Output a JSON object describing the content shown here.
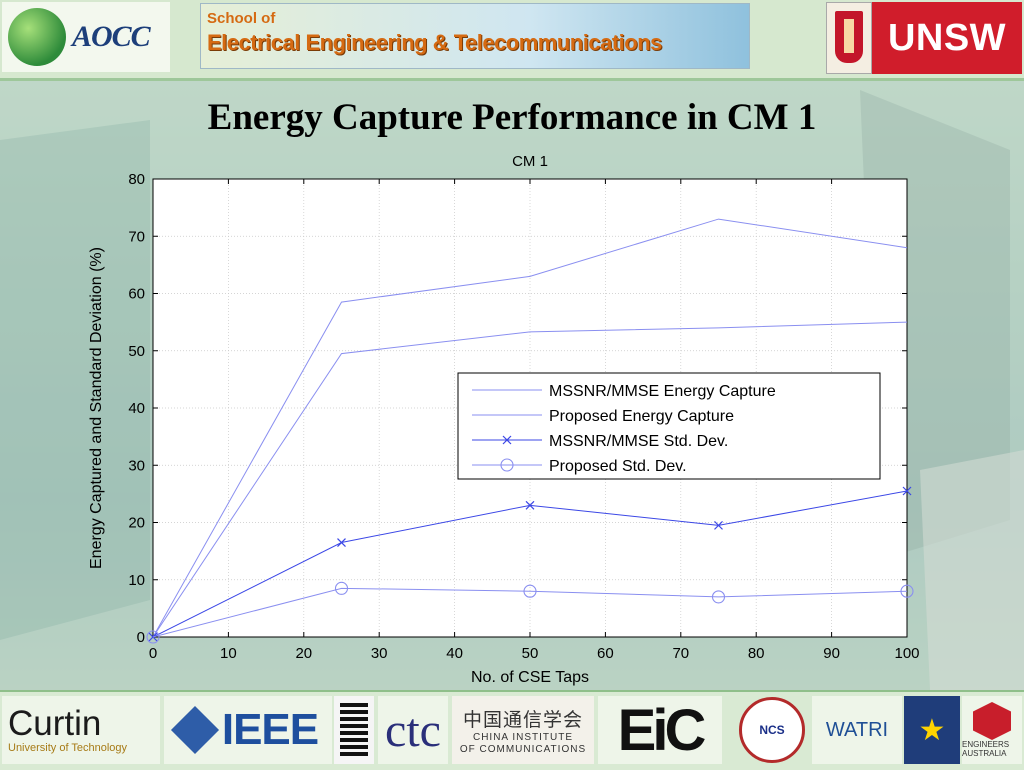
{
  "header": {
    "aocc_logo_text": "AOCC",
    "banner_line1": "School of",
    "banner_line2": "Electrical Engineering & Telecommunications",
    "unsw_text": "UNSW"
  },
  "slide_title": "Energy Capture Performance in CM 1",
  "footer": {
    "curtin_name": "Curtin",
    "curtin_sub": "University of Technology",
    "ieee_text": "IEEE",
    "cfc_text": "ctc",
    "cic_zh": "中国通信学会",
    "cic_en1": "CHINA INSTITUTE",
    "cic_en2": "OF COMMUNICATIONS",
    "eic_text": "EiC",
    "ncs_text": "NCS",
    "watri_text": "WATRI",
    "engaus_text": "ENGINEERS AUSTRALIA"
  },
  "chart_data": {
    "type": "line",
    "title": "CM 1",
    "xlabel": "No. of CSE Taps",
    "ylabel": "Energy Captured and Standard Deviation (%)",
    "xlim": [
      0,
      100
    ],
    "ylim": [
      0,
      80
    ],
    "xticks": [
      0,
      10,
      20,
      30,
      40,
      50,
      60,
      70,
      80,
      90,
      100
    ],
    "yticks": [
      0,
      10,
      20,
      30,
      40,
      50,
      60,
      70,
      80
    ],
    "grid": true,
    "legend_position": "center-right",
    "series": [
      {
        "name": "MSSNR/MMSE Energy Capture",
        "x": [
          0,
          25,
          50,
          75,
          100
        ],
        "y": [
          0,
          58.5,
          63,
          73,
          68
        ],
        "marker": "none",
        "color": "#8a8ff0"
      },
      {
        "name": "Proposed Energy Capture",
        "x": [
          0,
          25,
          50,
          75,
          100
        ],
        "y": [
          0,
          49.5,
          53.3,
          54,
          55
        ],
        "marker": "none",
        "color": "#8a8ff0"
      },
      {
        "name": "MSSNR/MMSE Std. Dev.",
        "x": [
          0,
          25,
          50,
          75,
          100
        ],
        "y": [
          0,
          16.5,
          23,
          19.5,
          25.5
        ],
        "marker": "x",
        "color": "#3b47e6"
      },
      {
        "name": "Proposed Std. Dev.",
        "x": [
          0,
          25,
          50,
          75,
          100
        ],
        "y": [
          0,
          8.5,
          8,
          7,
          8
        ],
        "marker": "o",
        "color": "#8a8ff0"
      }
    ]
  }
}
